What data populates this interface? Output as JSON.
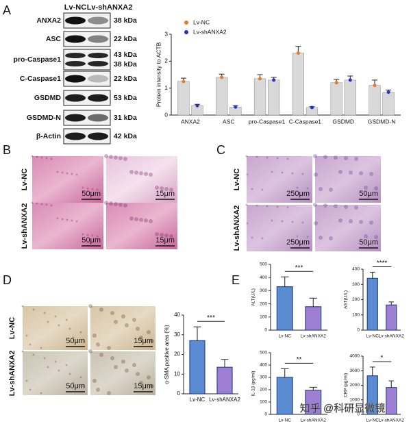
{
  "panel_labels": [
    "A",
    "B",
    "C",
    "D",
    "E"
  ],
  "blot": {
    "columns": [
      "Lv-NC",
      "Lv-shANXA2"
    ],
    "rows": [
      {
        "protein": "ANXA2",
        "kda": [
          "38 kDa"
        ]
      },
      {
        "protein": "ASC",
        "kda": [
          "22 kDa"
        ]
      },
      {
        "protein": "pro-Caspase1",
        "kda": [
          "43 kDa",
          "38 kDa"
        ]
      },
      {
        "protein": "C-Caspase1",
        "kda": [
          "22 kDa"
        ]
      },
      {
        "protein": "GSDMD",
        "kda": [
          "53 kDa"
        ]
      },
      {
        "protein": "GSDMD-N",
        "kda": [
          "31 kDa"
        ]
      },
      {
        "protein": "β-Actin",
        "kda": [
          "42 kDa"
        ]
      }
    ]
  },
  "histology_B": {
    "rows": [
      "Lv-NC",
      "Lv-shANXA2"
    ],
    "scale_bars": [
      [
        "50μm",
        "15μm"
      ],
      [
        "50μm",
        "15μm"
      ]
    ]
  },
  "histology_C": {
    "rows": [
      "Lv-NC",
      "Lv-shANXA2"
    ],
    "scale_bars": [
      [
        "250μm",
        "50μm"
      ],
      [
        "250μm",
        "50μm"
      ]
    ]
  },
  "ihc_D": {
    "rows": [
      "Lv-NC",
      "Lv-shANXA2"
    ],
    "scale_bars": [
      [
        "50μm",
        "15μm"
      ],
      [
        "50μm",
        "15μm"
      ]
    ]
  },
  "watermark": "知乎 @科研显微镜",
  "chart_data": [
    {
      "type": "bar",
      "y_label": "Protein intensity to ACTB",
      "bar_color": "#d9d9d9",
      "categories": [
        "ANXA2",
        "ASC",
        "pro-Caspase1",
        "C-Caspase1",
        "GSDMD",
        "GSDMD-N"
      ],
      "series": [
        {
          "name": "Lv-NC",
          "color": "#e8782a",
          "values": [
            1.25,
            1.4,
            1.35,
            2.3,
            1.2,
            1.1
          ],
          "errors": [
            0.12,
            0.12,
            0.15,
            0.25,
            0.12,
            0.2
          ]
        },
        {
          "name": "Lv-shANXA2",
          "color": "#2233c4",
          "values": [
            0.35,
            0.3,
            1.3,
            0.28,
            1.3,
            0.85
          ],
          "errors": [
            0.05,
            0.05,
            0.1,
            0.03,
            0.15,
            0.08
          ]
        }
      ],
      "ylim": [
        0,
        3
      ],
      "yticks": [
        0,
        1,
        2,
        3
      ]
    },
    {
      "type": "bar",
      "y_label": "α-SMA positive area (%)",
      "categories": [
        "Lv-NC",
        "Lv-shANXA2"
      ],
      "values": [
        27,
        13.5
      ],
      "errors": [
        7,
        4
      ],
      "colors": [
        "#5b8bd0",
        "#9f7fd6"
      ],
      "significance": "***",
      "ylim": [
        0,
        40
      ],
      "yticks": [
        0,
        10,
        20,
        30,
        40
      ]
    },
    {
      "type": "bar",
      "y_label": "ALT(U/L)",
      "categories": [
        "Lv-NC",
        "Lv-shANXA2"
      ],
      "values": [
        330,
        178
      ],
      "errors": [
        75,
        65
      ],
      "colors": [
        "#5b8bd0",
        "#9f7fd6"
      ],
      "significance": "***",
      "ylim": [
        0,
        500
      ],
      "yticks": [
        0,
        100,
        200,
        300,
        400,
        500
      ]
    },
    {
      "type": "bar",
      "y_label": "AST(U/L)",
      "categories": [
        "Lv-NC",
        "Lv-shANXA2"
      ],
      "values": [
        340,
        165
      ],
      "errors": [
        40,
        20
      ],
      "colors": [
        "#5b8bd0",
        "#9f7fd6"
      ],
      "significance": "****",
      "ylim": [
        0,
        400
      ],
      "yticks": [
        0,
        100,
        200,
        300,
        400
      ]
    },
    {
      "type": "bar",
      "y_label": "IL-1β (pg/ml)",
      "categories": [
        "Lv-NC",
        "Lv-shANXA2"
      ],
      "values": [
        300,
        195
      ],
      "errors": [
        70,
        25
      ],
      "colors": [
        "#5b8bd0",
        "#9f7fd6"
      ],
      "significance": "**",
      "ylim": [
        0,
        500
      ],
      "yticks": [
        0,
        100,
        200,
        300,
        400,
        500
      ]
    },
    {
      "type": "bar",
      "y_label": "CRP (pg/ml)",
      "categories": [
        "Lv-NC",
        "Lv-shANXA2"
      ],
      "values": [
        2650,
        1850
      ],
      "errors": [
        600,
        450
      ],
      "colors": [
        "#5b8bd0",
        "#9f7fd6"
      ],
      "significance": "*",
      "ylim": [
        0,
        4000
      ],
      "yticks": [
        0,
        1000,
        2000,
        3000,
        4000
      ]
    }
  ]
}
